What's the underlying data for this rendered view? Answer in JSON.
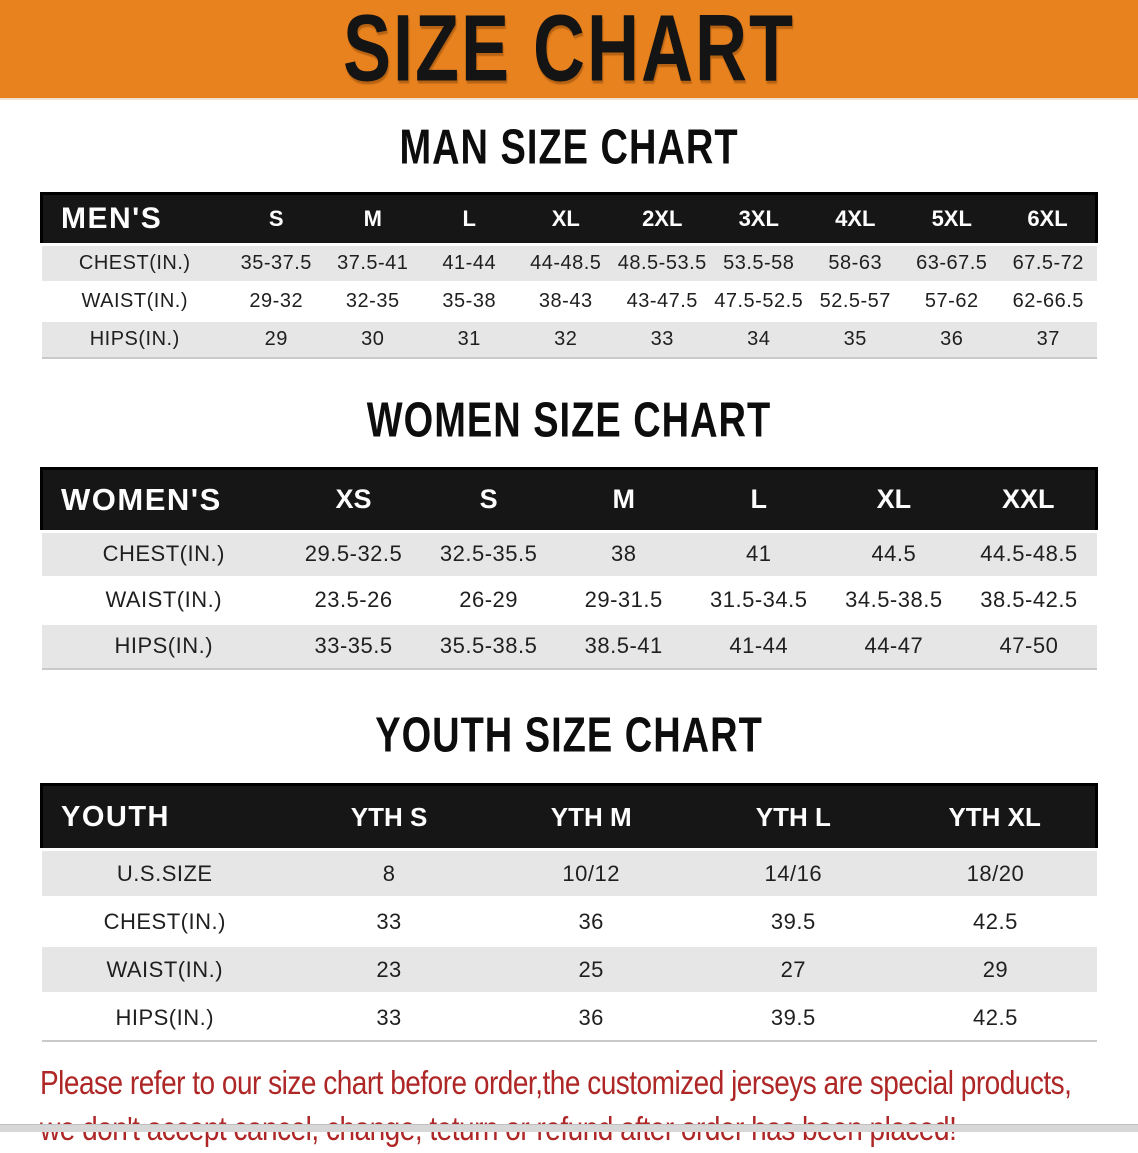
{
  "banner": {
    "title": "SIZE CHART"
  },
  "colors": {
    "banner_bg": "#E8821E",
    "table_header_bg": "#161616",
    "row_alt_bg": "#E6E6E6",
    "disclaimer_text": "#AE2626"
  },
  "sections": [
    {
      "heading": "MAN SIZE CHART",
      "table": {
        "header_label": "MEN'S",
        "columns": [
          "S",
          "M",
          "L",
          "XL",
          "2XL",
          "3XL",
          "4XL",
          "5XL",
          "6XL"
        ],
        "rows": [
          {
            "label": "CHEST(IN.)",
            "values": [
              "35-37.5",
              "37.5-41",
              "41-44",
              "44-48.5",
              "48.5-53.5",
              "53.5-58",
              "58-63",
              "63-67.5",
              "67.5-72"
            ]
          },
          {
            "label": "WAIST(IN.)",
            "values": [
              "29-32",
              "32-35",
              "35-38",
              "38-43",
              "43-47.5",
              "47.5-52.5",
              "52.5-57",
              "57-62",
              "62-66.5"
            ]
          },
          {
            "label": "HIPS(IN.)",
            "values": [
              "29",
              "30",
              "31",
              "32",
              "33",
              "34",
              "35",
              "36",
              "37"
            ]
          }
        ]
      }
    },
    {
      "heading": "WOMEN SIZE CHART",
      "table": {
        "header_label": "WOMEN'S",
        "columns": [
          "XS",
          "S",
          "M",
          "L",
          "XL",
          "XXL"
        ],
        "rows": [
          {
            "label": "CHEST(IN.)",
            "values": [
              "29.5-32.5",
              "32.5-35.5",
              "38",
              "41",
              "44.5",
              "44.5-48.5"
            ]
          },
          {
            "label": "WAIST(IN.)",
            "values": [
              "23.5-26",
              "26-29",
              "29-31.5",
              "31.5-34.5",
              "34.5-38.5",
              "38.5-42.5"
            ]
          },
          {
            "label": "HIPS(IN.)",
            "values": [
              "33-35.5",
              "35.5-38.5",
              "38.5-41",
              "41-44",
              "44-47",
              "47-50"
            ]
          }
        ]
      }
    },
    {
      "heading": "YOUTH SIZE CHART",
      "table": {
        "header_label": "YOUTH",
        "columns": [
          "YTH S",
          "YTH M",
          "YTH L",
          "YTH XL"
        ],
        "rows": [
          {
            "label": "U.S.SIZE",
            "values": [
              "8",
              "10/12",
              "14/16",
              "18/20"
            ]
          },
          {
            "label": "CHEST(IN.)",
            "values": [
              "33",
              "36",
              "39.5",
              "42.5"
            ]
          },
          {
            "label": "WAIST(IN.)",
            "values": [
              "23",
              "25",
              "27",
              "29"
            ]
          },
          {
            "label": "HIPS(IN.)",
            "values": [
              "33",
              "36",
              "39.5",
              "42.5"
            ]
          }
        ]
      }
    }
  ],
  "disclaimer": {
    "line1": "Please refer to our size chart before order,the customized jerseys are special products,",
    "line2": "we don't accept cancel, change, teturn or refund after order has been placed!"
  }
}
